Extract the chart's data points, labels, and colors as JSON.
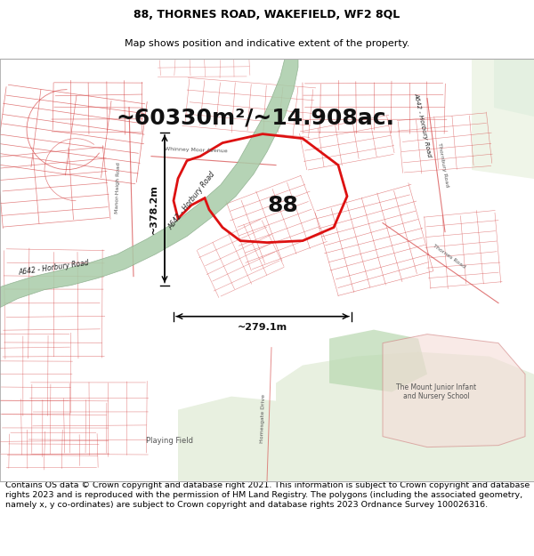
{
  "title_line1": "88, THORNES ROAD, WAKEFIELD, WF2 8QL",
  "title_line2": "Map shows position and indicative extent of the property.",
  "area_text": "~60330m²/~14.908ac.",
  "label_88": "88",
  "dim_vertical": "~378.2m",
  "dim_horizontal": "~279.1m",
  "road_label_diag": "A642 - Horbury Road",
  "road_label_left": "A642 - Horbury Road",
  "road_label_right": "A642 - Horbury Road",
  "playing_field": "Playing Field",
  "school_label": "The Mount Junior Infant\nand Nursery School",
  "copyright_text": "Contains OS data © Crown copyright and database right 2021. This information is subject to Crown copyright and database rights 2023 and is reproduced with the permission of HM Land Registry. The polygons (including the associated geometry, namely x, y co-ordinates) are subject to Crown copyright and database rights 2023 Ordnance Survey 100026316.",
  "bg_color": "#f7f5f0",
  "street_color": "#d44040",
  "road_fill": "#9ec99e",
  "road_edge": "#7aaa7a",
  "prop_edge": "#dd1111",
  "green_park": "#c8dfc0",
  "title_fontsize": 9,
  "subtitle_fontsize": 8,
  "area_fontsize": 18,
  "label_fontsize": 18,
  "dim_fontsize": 8,
  "copyright_fontsize": 6.8
}
